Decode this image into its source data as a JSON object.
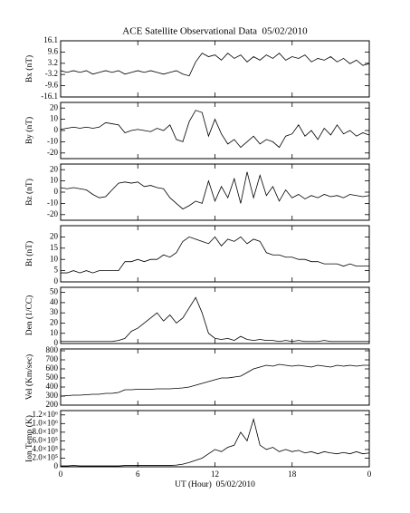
{
  "chart_data": [
    {
      "type": "line",
      "title": "ACE Satellite Observational Data  05/02/2010",
      "ylabel": "Bx (nT)",
      "color": "#000000",
      "xlim": [
        0,
        24
      ],
      "ylim": [
        -16.1,
        16.1
      ],
      "yticks": [
        16.1,
        9.6,
        3.2,
        -3.2,
        -9.6,
        -16.1
      ],
      "x": [
        0,
        0.5,
        1,
        1.5,
        2,
        2.5,
        3,
        3.5,
        4,
        4.5,
        5,
        5.5,
        6,
        6.5,
        7,
        7.5,
        8,
        8.5,
        9,
        9.5,
        10,
        10.5,
        11,
        11.5,
        12,
        12.5,
        13,
        13.5,
        14,
        14.5,
        15,
        15.5,
        16,
        16.5,
        17,
        17.5,
        18,
        18.5,
        19,
        19.5,
        20,
        20.5,
        21,
        21.5,
        22,
        22.5,
        23,
        23.5,
        24
      ],
      "values": [
        -1,
        -2,
        -1,
        -2,
        -1,
        -3,
        -2,
        -1,
        -2,
        -1,
        -3,
        -2,
        -1,
        -2,
        -1,
        -2,
        -3,
        -2,
        -1,
        -3,
        -4,
        4,
        9,
        7,
        8,
        5,
        9,
        6,
        8,
        4,
        7,
        5,
        8,
        6,
        9,
        5,
        7,
        6,
        8,
        4,
        6,
        5,
        7,
        4,
        6,
        3,
        5,
        2,
        3
      ]
    },
    {
      "type": "line",
      "ylabel": "By (nT)",
      "color": "#000000",
      "xlim": [
        0,
        24
      ],
      "ylim": [
        -25,
        25
      ],
      "yticks": [
        20,
        10,
        0,
        -10,
        -20
      ],
      "x": [
        0,
        0.5,
        1,
        1.5,
        2,
        2.5,
        3,
        3.5,
        4,
        4.5,
        5,
        5.5,
        6,
        6.5,
        7,
        7.5,
        8,
        8.5,
        9,
        9.5,
        10,
        10.5,
        11,
        11.5,
        12,
        12.5,
        13,
        13.5,
        14,
        14.5,
        15,
        15.5,
        16,
        16.5,
        17,
        17.5,
        18,
        18.5,
        19,
        19.5,
        20,
        20.5,
        21,
        21.5,
        22,
        22.5,
        23,
        23.5,
        24
      ],
      "values": [
        1,
        2,
        3,
        2,
        3,
        2,
        3,
        7,
        6,
        5,
        -2,
        0,
        1,
        0,
        -1,
        2,
        0,
        5,
        -8,
        -10,
        8,
        18,
        16,
        -5,
        10,
        -3,
        -12,
        -8,
        -15,
        -10,
        -5,
        -12,
        -8,
        -10,
        -15,
        -5,
        -3,
        5,
        -5,
        0,
        -8,
        2,
        -4,
        5,
        -3,
        0,
        -5,
        -2,
        -4
      ]
    },
    {
      "type": "line",
      "ylabel": "Bz (nT)",
      "color": "#000000",
      "xlim": [
        0,
        24
      ],
      "ylim": [
        -25,
        25
      ],
      "yticks": [
        20,
        10,
        0,
        -10,
        -20
      ],
      "x": [
        0,
        0.5,
        1,
        1.5,
        2,
        2.5,
        3,
        3.5,
        4,
        4.5,
        5,
        5.5,
        6,
        6.5,
        7,
        7.5,
        8,
        8.5,
        9,
        9.5,
        10,
        10.5,
        11,
        11.5,
        12,
        12.5,
        13,
        13.5,
        14,
        14.5,
        15,
        15.5,
        16,
        16.5,
        17,
        17.5,
        18,
        18.5,
        19,
        19.5,
        20,
        20.5,
        21,
        21.5,
        22,
        22.5,
        23,
        23.5,
        24
      ],
      "values": [
        4,
        3,
        4,
        3,
        2,
        -2,
        -5,
        -4,
        2,
        8,
        9,
        8,
        9,
        5,
        6,
        4,
        3,
        -5,
        -10,
        -15,
        -12,
        -8,
        -10,
        10,
        -8,
        5,
        -5,
        12,
        -10,
        18,
        -5,
        15,
        -3,
        5,
        -8,
        2,
        -5,
        -2,
        -6,
        -3,
        -5,
        -2,
        -4,
        -3,
        -5,
        -2,
        -3,
        -4,
        -3
      ]
    },
    {
      "type": "line",
      "ylabel": "Bt (nT)",
      "color": "#000000",
      "xlim": [
        0,
        24
      ],
      "ylim": [
        0,
        25
      ],
      "yticks": [
        0,
        5,
        10,
        15,
        20
      ],
      "x": [
        0,
        0.5,
        1,
        1.5,
        2,
        2.5,
        3,
        3.5,
        4,
        4.5,
        5,
        5.5,
        6,
        6.5,
        7,
        7.5,
        8,
        8.5,
        9,
        9.5,
        10,
        10.5,
        11,
        11.5,
        12,
        12.5,
        13,
        13.5,
        14,
        14.5,
        15,
        15.5,
        16,
        16.5,
        17,
        17.5,
        18,
        18.5,
        19,
        19.5,
        20,
        20.5,
        21,
        21.5,
        22,
        22.5,
        23,
        23.5,
        24
      ],
      "values": [
        4,
        4,
        5,
        4,
        5,
        4,
        5,
        5,
        5,
        5,
        9,
        9,
        10,
        9,
        10,
        10,
        12,
        11,
        13,
        18,
        20,
        19,
        18,
        17,
        20,
        16,
        19,
        18,
        20,
        17,
        19,
        18,
        13,
        12,
        12,
        11,
        11,
        10,
        10,
        9,
        9,
        8,
        8,
        8,
        7,
        8,
        7,
        7,
        7
      ]
    },
    {
      "type": "line",
      "ylabel": "Den (1/CC)",
      "color": "#000000",
      "xlim": [
        0,
        24
      ],
      "ylim": [
        0,
        55
      ],
      "yticks": [
        0,
        10,
        20,
        30,
        40,
        50
      ],
      "x": [
        0,
        0.5,
        1,
        1.5,
        2,
        2.5,
        3,
        3.5,
        4,
        4.5,
        5,
        5.5,
        6,
        6.5,
        7,
        7.5,
        8,
        8.5,
        9,
        9.5,
        10,
        10.5,
        11,
        11.5,
        12,
        12.5,
        13,
        13.5,
        14,
        14.5,
        15,
        15.5,
        16,
        16.5,
        17,
        17.5,
        18,
        18.5,
        19,
        19.5,
        20,
        20.5,
        21,
        21.5,
        22,
        22.5,
        23,
        23.5,
        24
      ],
      "values": [
        2,
        2,
        2,
        2,
        2,
        2,
        2,
        2,
        2,
        3,
        5,
        12,
        15,
        20,
        25,
        30,
        22,
        28,
        20,
        25,
        35,
        45,
        30,
        10,
        5,
        4,
        5,
        3,
        7,
        4,
        3,
        4,
        3,
        3,
        2,
        3,
        2,
        3,
        2,
        2,
        2,
        3,
        2,
        2,
        2,
        2,
        2,
        2,
        2
      ]
    },
    {
      "type": "line",
      "ylabel": "Vel (Km/sec)",
      "color": "#000000",
      "xlim": [
        0,
        24
      ],
      "ylim": [
        200,
        820
      ],
      "yticks": [
        200,
        300,
        400,
        500,
        600,
        700,
        800
      ],
      "x": [
        0,
        0.5,
        1,
        1.5,
        2,
        2.5,
        3,
        3.5,
        4,
        4.5,
        5,
        5.5,
        6,
        6.5,
        7,
        7.5,
        8,
        8.5,
        9,
        9.5,
        10,
        10.5,
        11,
        11.5,
        12,
        12.5,
        13,
        13.5,
        14,
        14.5,
        15,
        15.5,
        16,
        16.5,
        17,
        17.5,
        18,
        18.5,
        19,
        19.5,
        20,
        20.5,
        21,
        21.5,
        22,
        22.5,
        23,
        23.5,
        24
      ],
      "values": [
        300,
        305,
        310,
        310,
        315,
        320,
        320,
        330,
        330,
        340,
        370,
        370,
        375,
        375,
        375,
        380,
        380,
        380,
        385,
        390,
        400,
        420,
        440,
        460,
        480,
        500,
        500,
        510,
        520,
        560,
        600,
        620,
        640,
        630,
        650,
        640,
        630,
        640,
        630,
        620,
        640,
        630,
        620,
        640,
        630,
        640,
        630,
        640,
        640
      ]
    },
    {
      "type": "line",
      "ylabel": "Ion Temp (K)",
      "xlabel": "UT (Hour)  05/02/2010",
      "color": "#000000",
      "xlim": [
        0,
        24
      ],
      "xticks": [
        0,
        6,
        12,
        18,
        {
          "value": 24,
          "label": "0"
        }
      ],
      "ylim": [
        0,
        1300000
      ],
      "yticks": [
        0,
        {
          "value": 200000,
          "label": "2.0×10⁵"
        },
        {
          "value": 400000,
          "label": "4.0×10⁵"
        },
        {
          "value": 600000,
          "label": "6.0×10⁵"
        },
        {
          "value": 800000,
          "label": "8.0×10⁵"
        },
        {
          "value": 1000000,
          "label": "1.0×10⁶"
        },
        {
          "value": 1200000,
          "label": "1.2×10⁶"
        }
      ],
      "x": [
        0,
        0.5,
        1,
        1.5,
        2,
        2.5,
        3,
        3.5,
        4,
        4.5,
        5,
        5.5,
        6,
        6.5,
        7,
        7.5,
        8,
        8.5,
        9,
        9.5,
        10,
        10.5,
        11,
        11.5,
        12,
        12.5,
        13,
        13.5,
        14,
        14.5,
        15,
        15.5,
        16,
        16.5,
        17,
        17.5,
        18,
        18.5,
        19,
        19.5,
        20,
        20.5,
        21,
        21.5,
        22,
        22.5,
        23,
        23.5,
        24
      ],
      "values": [
        20000,
        20000,
        30000,
        20000,
        20000,
        20000,
        20000,
        20000,
        20000,
        20000,
        30000,
        30000,
        30000,
        30000,
        30000,
        30000,
        30000,
        30000,
        40000,
        60000,
        100000,
        150000,
        200000,
        300000,
        400000,
        350000,
        450000,
        500000,
        800000,
        600000,
        1100000,
        500000,
        400000,
        450000,
        350000,
        400000,
        350000,
        380000,
        320000,
        350000,
        300000,
        350000,
        320000,
        300000,
        330000,
        300000,
        350000,
        300000,
        320000
      ]
    }
  ]
}
